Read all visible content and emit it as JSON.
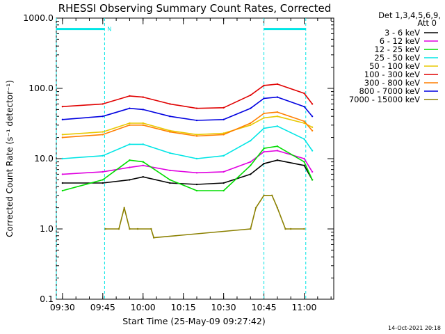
{
  "chart_data": {
    "type": "line",
    "title": "RHESSI Observing Summary Count Rates, Corrected",
    "xlabel": "Start Time (25-May-09 09:27:42)",
    "ylabel": "Corrected Count Rate (s⁻¹ detector⁻¹)",
    "y_scale": "log",
    "ylim": [
      0.1,
      1000
    ],
    "y_ticks": [
      {
        "value": 0.1,
        "label": "0.1"
      },
      {
        "value": 1,
        "label": "1.0"
      },
      {
        "value": 10,
        "label": "10.0"
      },
      {
        "value": 100,
        "label": "100.0"
      },
      {
        "value": 1000,
        "label": "1000.0"
      }
    ],
    "xlim": [
      "09:27:42",
      "11:11:00"
    ],
    "x_ticks": [
      "09:30",
      "09:45",
      "10:00",
      "10:15",
      "10:30",
      "10:45",
      "11:00"
    ],
    "detector_note": [
      "Det 1,3,4,5,6,9,",
      "Att 0"
    ],
    "timestamp": "14-Oct-2021 20:18",
    "colors": {
      "background": "#ffffff",
      "axes": "#000000",
      "night": "#00e5e5"
    },
    "series": [
      {
        "name": "3 - 6 keV",
        "color": "#000000",
        "x": [
          "09:30",
          "09:45",
          "09:55",
          "10:00",
          "10:10",
          "10:20",
          "10:30",
          "10:40",
          "10:45",
          "10:50",
          "11:00",
          "11:03"
        ],
        "y": [
          4.5,
          4.5,
          5,
          5.5,
          4.5,
          4.3,
          4.5,
          6,
          8.5,
          9.5,
          8,
          5
        ]
      },
      {
        "name": "6 - 12 keV",
        "color": "#e000e0",
        "x": [
          "09:30",
          "09:45",
          "09:55",
          "10:00",
          "10:10",
          "10:20",
          "10:30",
          "10:40",
          "10:45",
          "10:50",
          "11:00",
          "11:03"
        ],
        "y": [
          6,
          6.5,
          7.5,
          8,
          6.8,
          6.3,
          6.5,
          9,
          12.5,
          13,
          10,
          6.5
        ]
      },
      {
        "name": "12 - 25 keV",
        "color": "#00dd00",
        "x": [
          "09:30",
          "09:45",
          "09:55",
          "10:00",
          "10:10",
          "10:20",
          "10:30",
          "10:40",
          "10:45",
          "10:50",
          "11:00",
          "11:03"
        ],
        "y": [
          3.5,
          5,
          9.5,
          9,
          5,
          3.5,
          3.5,
          8,
          14,
          15,
          9,
          5
        ]
      },
      {
        "name": "25 - 50 keV",
        "color": "#00e5e5",
        "x": [
          "09:30",
          "09:45",
          "09:55",
          "10:00",
          "10:10",
          "10:20",
          "10:30",
          "10:40",
          "10:45",
          "10:50",
          "11:00",
          "11:03"
        ],
        "y": [
          10,
          11,
          16,
          16,
          12,
          10,
          11,
          18,
          27,
          29,
          19,
          13
        ]
      },
      {
        "name": "50 - 100 keV",
        "color": "#e8c800",
        "x": [
          "09:30",
          "09:45",
          "09:55",
          "10:00",
          "10:10",
          "10:20",
          "10:30",
          "10:40",
          "10:45",
          "10:50",
          "11:00",
          "11:03"
        ],
        "y": [
          22,
          24,
          32,
          32,
          25,
          22,
          23,
          30,
          38,
          40,
          32,
          28
        ]
      },
      {
        "name": "100 - 300 keV",
        "color": "#e00000",
        "x": [
          "09:30",
          "09:45",
          "09:55",
          "10:00",
          "10:10",
          "10:20",
          "10:30",
          "10:40",
          "10:45",
          "10:50",
          "11:00",
          "11:03"
        ],
        "y": [
          55,
          60,
          78,
          75,
          60,
          52,
          53,
          80,
          110,
          115,
          85,
          60
        ]
      },
      {
        "name": "300 - 800 keV",
        "color": "#ff7f00",
        "x": [
          "09:30",
          "09:45",
          "09:55",
          "10:00",
          "10:10",
          "10:20",
          "10:30",
          "10:40",
          "10:45",
          "10:50",
          "11:00",
          "11:03"
        ],
        "y": [
          20,
          22,
          30,
          30,
          24,
          21,
          22,
          32,
          44,
          46,
          34,
          25
        ]
      },
      {
        "name": "800 - 7000 keV",
        "color": "#0000e0",
        "x": [
          "09:30",
          "09:45",
          "09:55",
          "10:00",
          "10:10",
          "10:20",
          "10:30",
          "10:40",
          "10:45",
          "10:50",
          "11:00",
          "11:03"
        ],
        "y": [
          36,
          40,
          52,
          50,
          40,
          35,
          36,
          52,
          72,
          75,
          55,
          40
        ]
      },
      {
        "name": "7000 - 15000 keV",
        "color": "#8b8000",
        "x": [
          "09:46",
          "09:51",
          "09:53",
          "09:55",
          "09:58",
          "10:03",
          "10:04",
          "10:40",
          "10:42",
          "10:45",
          "10:48",
          "10:50",
          "10:53",
          "10:55",
          "11:00"
        ],
        "y": [
          1.0,
          1.0,
          2.0,
          1.0,
          1.0,
          1.0,
          0.75,
          1.0,
          2.0,
          3.0,
          3.0,
          2.0,
          1.0,
          1.0,
          1.0
        ]
      }
    ],
    "annotations": [
      {
        "type": "night-period",
        "start": "09:27:42",
        "end": "09:45:40",
        "label": "N"
      },
      {
        "type": "night-period",
        "start": "10:45:00",
        "end": "11:00:35",
        "label": ""
      }
    ],
    "grid": false,
    "legend": "right"
  }
}
